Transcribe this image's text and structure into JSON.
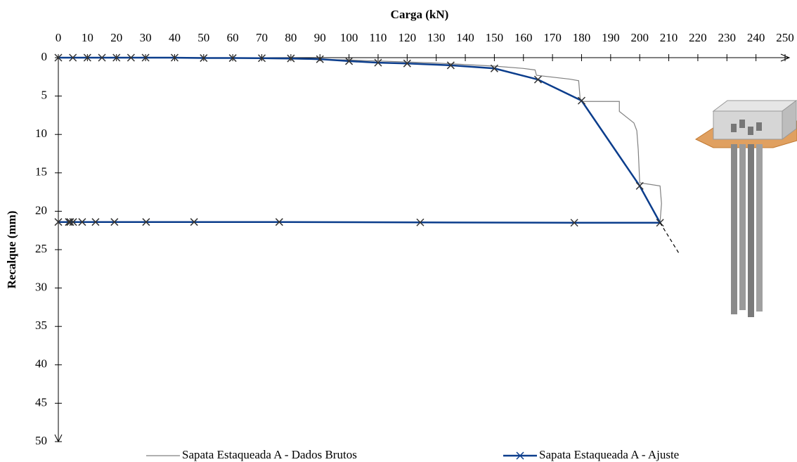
{
  "chart_data": {
    "type": "line",
    "title": "Carga (kN)",
    "y_label": "Recalque (mm)",
    "xlim": [
      0,
      250
    ],
    "xticks": [
      0,
      10,
      20,
      30,
      40,
      50,
      60,
      70,
      80,
      90,
      100,
      110,
      120,
      130,
      140,
      150,
      160,
      170,
      180,
      190,
      200,
      210,
      220,
      230,
      240,
      250
    ],
    "ylim": [
      0,
      50
    ],
    "yticks": [
      0,
      5,
      10,
      15,
      20,
      25,
      30,
      35,
      40,
      45,
      50
    ],
    "y_inverted": true,
    "x_axis_position": "top",
    "legend": "bottom",
    "series": [
      {
        "name": "Sapata Estaqueada A - Dados Brutos",
        "color": "#808080",
        "markers": false,
        "dash": false,
        "x": [
          0,
          50,
          100,
          130,
          150,
          160,
          164,
          164.5,
          176,
          179,
          179.5,
          180,
          193,
          193,
          198,
          199,
          199.5,
          200,
          207,
          207.5,
          207
        ],
        "values": [
          0,
          0,
          0.3,
          0.7,
          1.1,
          1.4,
          1.6,
          2.3,
          2.8,
          3.0,
          5.3,
          5.7,
          5.7,
          7.0,
          8.5,
          9.5,
          12,
          16.3,
          16.7,
          19,
          21.4
        ]
      },
      {
        "name": "Sapata Estaqueada A - Ajuste",
        "color": "#0b3d8c",
        "markers": true,
        "dash": false,
        "x": [
          0,
          5,
          10,
          15,
          20,
          25,
          30,
          40,
          50,
          60,
          70,
          80,
          90,
          100,
          110,
          120,
          135,
          150,
          165,
          180,
          200,
          207,
          177.5,
          124.5,
          76,
          46.7,
          30.2,
          19.3,
          12.8,
          8.2,
          5.1,
          4.1,
          3.6,
          0
        ],
        "values": [
          0,
          0,
          0,
          0,
          0,
          0,
          0,
          0,
          0.05,
          0.05,
          0.07,
          0.1,
          0.2,
          0.45,
          0.65,
          0.75,
          1.0,
          1.4,
          2.85,
          5.6,
          16.7,
          21.5,
          21.5,
          21.45,
          21.4,
          21.4,
          21.4,
          21.4,
          21.4,
          21.4,
          21.4,
          21.4,
          21.4,
          21.4
        ]
      },
      {
        "color": "#000000",
        "markers": false,
        "dash": true,
        "x": [
          207,
          213.7
        ],
        "values": [
          21.5,
          25.6
        ]
      }
    ]
  }
}
